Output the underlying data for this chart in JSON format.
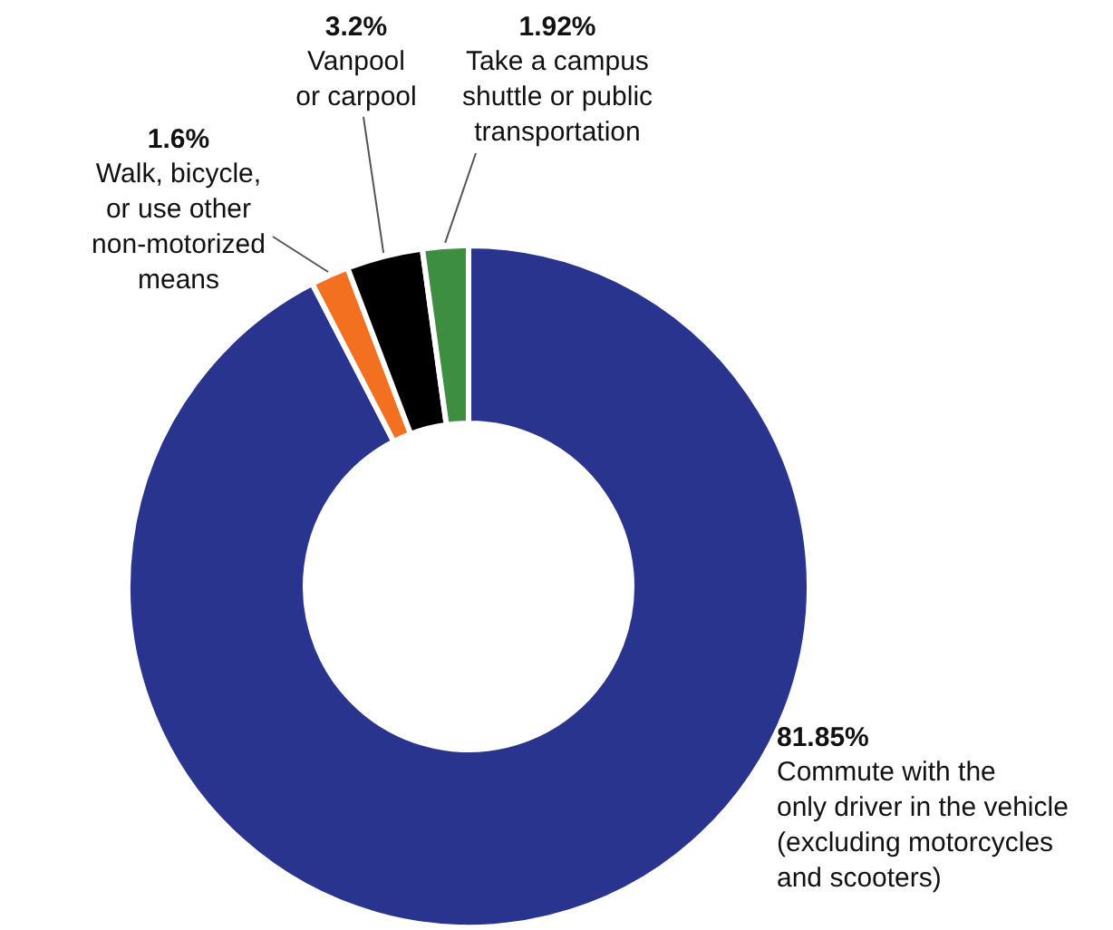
{
  "chart_data": {
    "type": "donut",
    "categories": [
      "Commute with the\nonly driver in the vehicle\n(excluding motorcycles\nand scooters)",
      "Walk, bicycle,\nor use other\nnon-motorized\nmeans",
      "Vanpool\nor carpool",
      "Take a campus\nshuttle or public\ntransportation"
    ],
    "values": [
      81.85,
      1.6,
      3.2,
      1.92
    ],
    "value_labels": [
      "81.85%",
      "1.6%",
      "3.2%",
      "1.92%"
    ],
    "colors": [
      "#29348f",
      "#f37021",
      "#000000",
      "#3e8e41"
    ]
  }
}
